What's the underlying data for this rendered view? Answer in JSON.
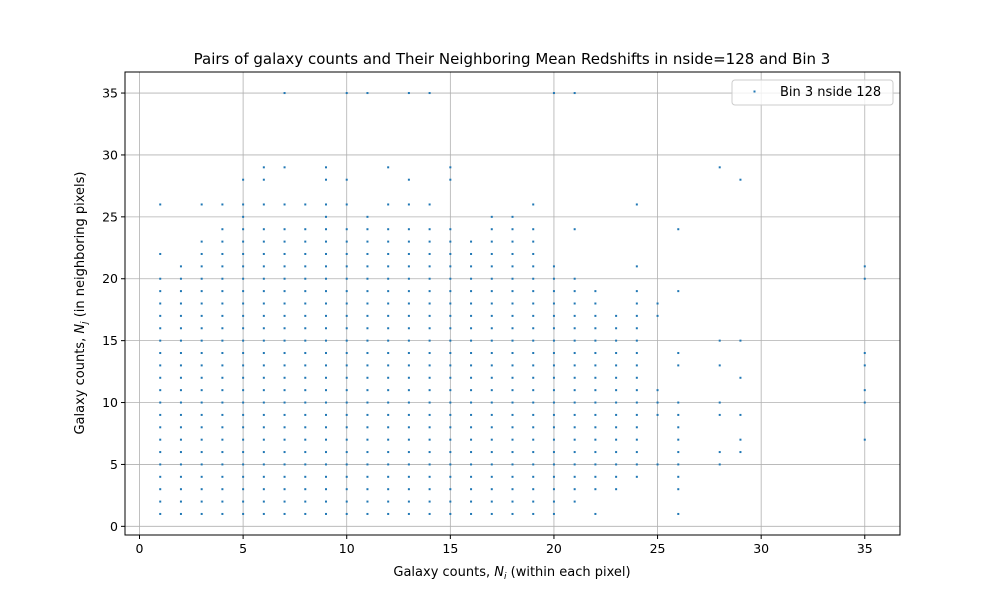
{
  "chart_data": {
    "type": "scatter",
    "title": "Pairs of galaxy counts and Their Neighboring Mean Redshifts in nside=128 and Bin 3",
    "xlabel_main": "Galaxy counts, ",
    "xlabel_var": "N",
    "xlabel_sub": "i",
    "xlabel_tail": " (within each pixel)",
    "ylabel_main": "Galaxy counts, ",
    "ylabel_var": "N",
    "ylabel_sub": "j",
    "ylabel_tail": " (in neighboring pixels)",
    "xlim": [
      -0.7,
      36.7
    ],
    "ylim": [
      -0.7,
      36.7
    ],
    "xticks": [
      0,
      5,
      10,
      15,
      20,
      25,
      30,
      35
    ],
    "yticks": [
      0,
      5,
      10,
      15,
      20,
      25,
      30,
      35
    ],
    "grid": true,
    "legend": {
      "position": "top-right",
      "entries": [
        "Bin 3 nside 128"
      ]
    },
    "colors": {
      "series": "#1f77b4",
      "grid": "#b0b0b0"
    },
    "series": [
      {
        "name": "Bin 3 nside 128",
        "columns": [
          {
            "x": 1,
            "y": [
              1,
              2,
              3,
              4,
              5,
              6,
              7,
              8,
              9,
              10,
              11,
              12,
              13,
              14,
              15,
              16,
              17,
              18,
              19,
              20,
              22,
              26
            ]
          },
          {
            "x": 2,
            "y": [
              1,
              2,
              3,
              4,
              5,
              6,
              7,
              8,
              9,
              10,
              11,
              12,
              13,
              14,
              15,
              16,
              17,
              18,
              19,
              20,
              21
            ]
          },
          {
            "x": 3,
            "y": [
              1,
              2,
              3,
              4,
              5,
              6,
              7,
              8,
              9,
              10,
              11,
              12,
              13,
              14,
              15,
              16,
              17,
              18,
              19,
              20,
              21,
              22,
              23,
              26
            ]
          },
          {
            "x": 4,
            "y": [
              1,
              2,
              3,
              4,
              5,
              6,
              7,
              8,
              9,
              10,
              11,
              12,
              13,
              14,
              15,
              16,
              17,
              18,
              19,
              20,
              21,
              22,
              23,
              24,
              26
            ]
          },
          {
            "x": 5,
            "y": [
              1,
              2,
              3,
              4,
              5,
              6,
              7,
              8,
              9,
              10,
              11,
              12,
              13,
              14,
              15,
              16,
              17,
              18,
              19,
              20,
              21,
              22,
              23,
              24,
              25,
              26,
              28
            ]
          },
          {
            "x": 6,
            "y": [
              1,
              2,
              3,
              4,
              5,
              6,
              7,
              8,
              9,
              10,
              11,
              12,
              13,
              14,
              15,
              16,
              17,
              18,
              19,
              20,
              21,
              22,
              23,
              24,
              26,
              28,
              29
            ]
          },
          {
            "x": 7,
            "y": [
              1,
              2,
              3,
              4,
              5,
              6,
              7,
              8,
              9,
              10,
              11,
              12,
              13,
              14,
              15,
              16,
              17,
              18,
              19,
              20,
              21,
              22,
              23,
              24,
              26,
              29,
              35
            ]
          },
          {
            "x": 8,
            "y": [
              1,
              2,
              3,
              4,
              5,
              6,
              7,
              8,
              9,
              10,
              11,
              12,
              13,
              14,
              15,
              16,
              17,
              18,
              19,
              20,
              21,
              22,
              23,
              24,
              26
            ]
          },
          {
            "x": 9,
            "y": [
              1,
              2,
              3,
              4,
              5,
              6,
              7,
              8,
              9,
              10,
              11,
              12,
              13,
              14,
              15,
              16,
              17,
              18,
              19,
              20,
              21,
              22,
              23,
              24,
              25,
              26,
              28,
              29
            ]
          },
          {
            "x": 10,
            "y": [
              1,
              2,
              3,
              4,
              5,
              6,
              7,
              8,
              9,
              10,
              11,
              12,
              13,
              14,
              15,
              16,
              17,
              18,
              19,
              20,
              21,
              22,
              23,
              24,
              26,
              28,
              35
            ]
          },
          {
            "x": 11,
            "y": [
              1,
              2,
              3,
              4,
              5,
              6,
              7,
              8,
              9,
              10,
              11,
              12,
              13,
              14,
              15,
              16,
              17,
              18,
              19,
              20,
              21,
              22,
              23,
              24,
              25,
              35
            ]
          },
          {
            "x": 12,
            "y": [
              1,
              2,
              3,
              4,
              5,
              6,
              7,
              8,
              9,
              10,
              11,
              12,
              13,
              14,
              15,
              16,
              17,
              18,
              19,
              20,
              21,
              22,
              23,
              24,
              26,
              29
            ]
          },
          {
            "x": 13,
            "y": [
              1,
              2,
              3,
              4,
              5,
              6,
              7,
              8,
              9,
              10,
              11,
              12,
              13,
              14,
              15,
              16,
              17,
              18,
              19,
              20,
              21,
              22,
              23,
              24,
              26,
              28,
              35
            ]
          },
          {
            "x": 14,
            "y": [
              1,
              2,
              3,
              4,
              5,
              6,
              7,
              8,
              9,
              10,
              11,
              12,
              13,
              14,
              15,
              16,
              17,
              18,
              19,
              20,
              21,
              22,
              23,
              24,
              26,
              35
            ]
          },
          {
            "x": 15,
            "y": [
              1,
              2,
              3,
              4,
              5,
              6,
              7,
              8,
              9,
              10,
              11,
              12,
              13,
              14,
              15,
              16,
              17,
              18,
              19,
              20,
              21,
              22,
              23,
              24,
              28,
              29
            ]
          },
          {
            "x": 16,
            "y": [
              1,
              2,
              3,
              4,
              5,
              6,
              7,
              8,
              9,
              10,
              11,
              12,
              13,
              14,
              15,
              16,
              17,
              18,
              19,
              20,
              21,
              22,
              23
            ]
          },
          {
            "x": 17,
            "y": [
              1,
              2,
              3,
              4,
              5,
              6,
              7,
              8,
              9,
              10,
              11,
              12,
              13,
              14,
              15,
              16,
              17,
              18,
              19,
              20,
              21,
              22,
              23,
              24,
              25
            ]
          },
          {
            "x": 18,
            "y": [
              1,
              2,
              3,
              4,
              5,
              6,
              7,
              8,
              9,
              10,
              11,
              12,
              13,
              14,
              15,
              16,
              17,
              18,
              19,
              20,
              21,
              22,
              23,
              24,
              25
            ]
          },
          {
            "x": 19,
            "y": [
              1,
              2,
              3,
              4,
              5,
              6,
              7,
              8,
              9,
              10,
              11,
              12,
              13,
              14,
              15,
              16,
              17,
              18,
              19,
              20,
              21,
              22,
              23,
              24,
              26
            ]
          },
          {
            "x": 20,
            "y": [
              1,
              2,
              3,
              4,
              5,
              6,
              7,
              8,
              9,
              10,
              11,
              12,
              13,
              14,
              15,
              16,
              17,
              18,
              19,
              20,
              21,
              35
            ]
          },
          {
            "x": 21,
            "y": [
              2,
              3,
              4,
              5,
              6,
              7,
              8,
              9,
              10,
              11,
              12,
              13,
              14,
              15,
              16,
              17,
              18,
              19,
              20,
              24,
              35
            ]
          },
          {
            "x": 22,
            "y": [
              1,
              3,
              4,
              5,
              6,
              7,
              8,
              9,
              10,
              11,
              12,
              13,
              14,
              15,
              16,
              17,
              18,
              19
            ]
          },
          {
            "x": 23,
            "y": [
              3,
              4,
              5,
              6,
              7,
              8,
              9,
              10,
              11,
              12,
              13,
              14,
              15,
              16,
              17
            ]
          },
          {
            "x": 24,
            "y": [
              4,
              5,
              6,
              7,
              8,
              9,
              10,
              11,
              12,
              13,
              14,
              15,
              16,
              17,
              18,
              19,
              21,
              26
            ]
          },
          {
            "x": 25,
            "y": [
              5,
              9,
              10,
              11,
              17,
              18
            ]
          },
          {
            "x": 26,
            "y": [
              1,
              3,
              4,
              5,
              6,
              7,
              8,
              9,
              10,
              13,
              14,
              19,
              24
            ]
          },
          {
            "x": 28,
            "y": [
              5,
              6,
              9,
              10,
              13,
              15,
              29
            ]
          },
          {
            "x": 29,
            "y": [
              6,
              7,
              9,
              12,
              15,
              28
            ]
          },
          {
            "x": 35,
            "y": [
              7,
              10,
              11,
              13,
              14,
              20,
              21
            ]
          }
        ]
      }
    ]
  }
}
